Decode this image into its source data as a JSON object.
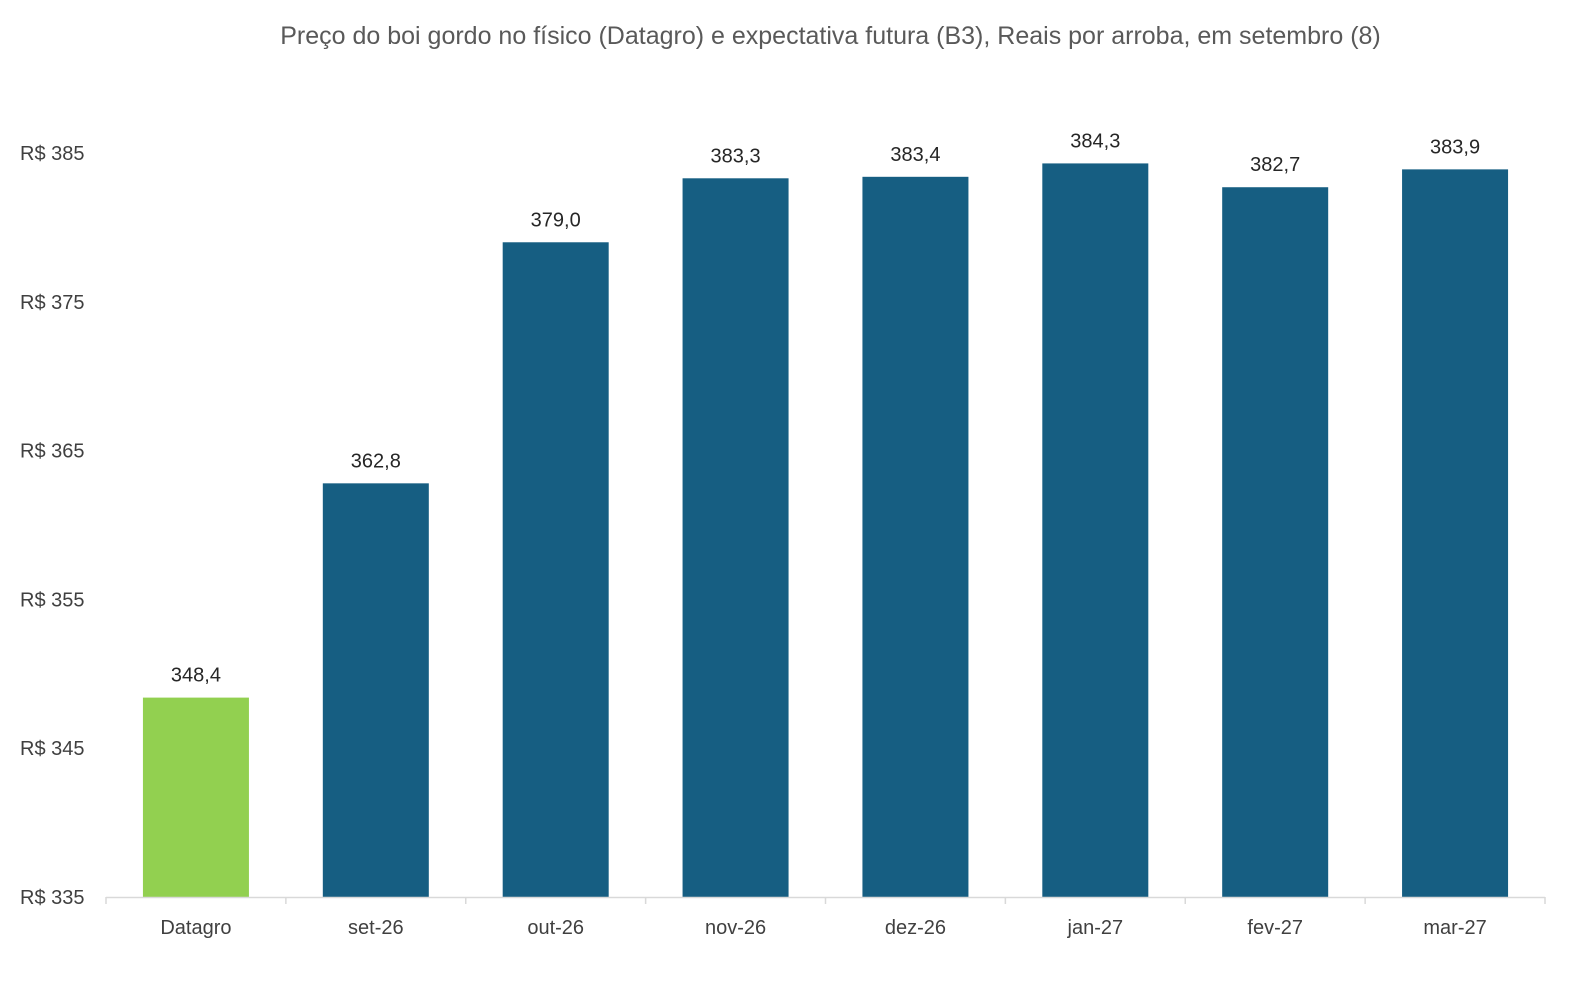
{
  "chart_data": {
    "type": "bar",
    "title": "Preço do boi gordo no físico (Datagro)  e expectativa futura (B3), Reais por arroba, em setembro (8)",
    "categories": [
      "Datagro",
      "set-26",
      "out-26",
      "nov-26",
      "dez-26",
      "jan-27",
      "fev-27",
      "mar-27"
    ],
    "values": [
      348.4,
      362.8,
      379.0,
      383.3,
      383.4,
      384.3,
      382.7,
      383.9
    ],
    "value_labels": [
      "348,4",
      "362,8",
      "379,0",
      "383,3",
      "383,4",
      "384,3",
      "382,7",
      "383,9"
    ],
    "ylim": [
      335,
      385
    ],
    "yticks": [
      335,
      345,
      355,
      365,
      375,
      385
    ],
    "ytick_labels": [
      "R$ 335",
      "R$ 345",
      "R$ 355",
      "R$ 365",
      "R$ 375",
      "R$ 385"
    ],
    "xlabel": "",
    "ylabel": "",
    "grid": false,
    "colors": {
      "highlight": "#92d050",
      "bars": "#165e82",
      "axis": "#d9d9d9"
    }
  }
}
